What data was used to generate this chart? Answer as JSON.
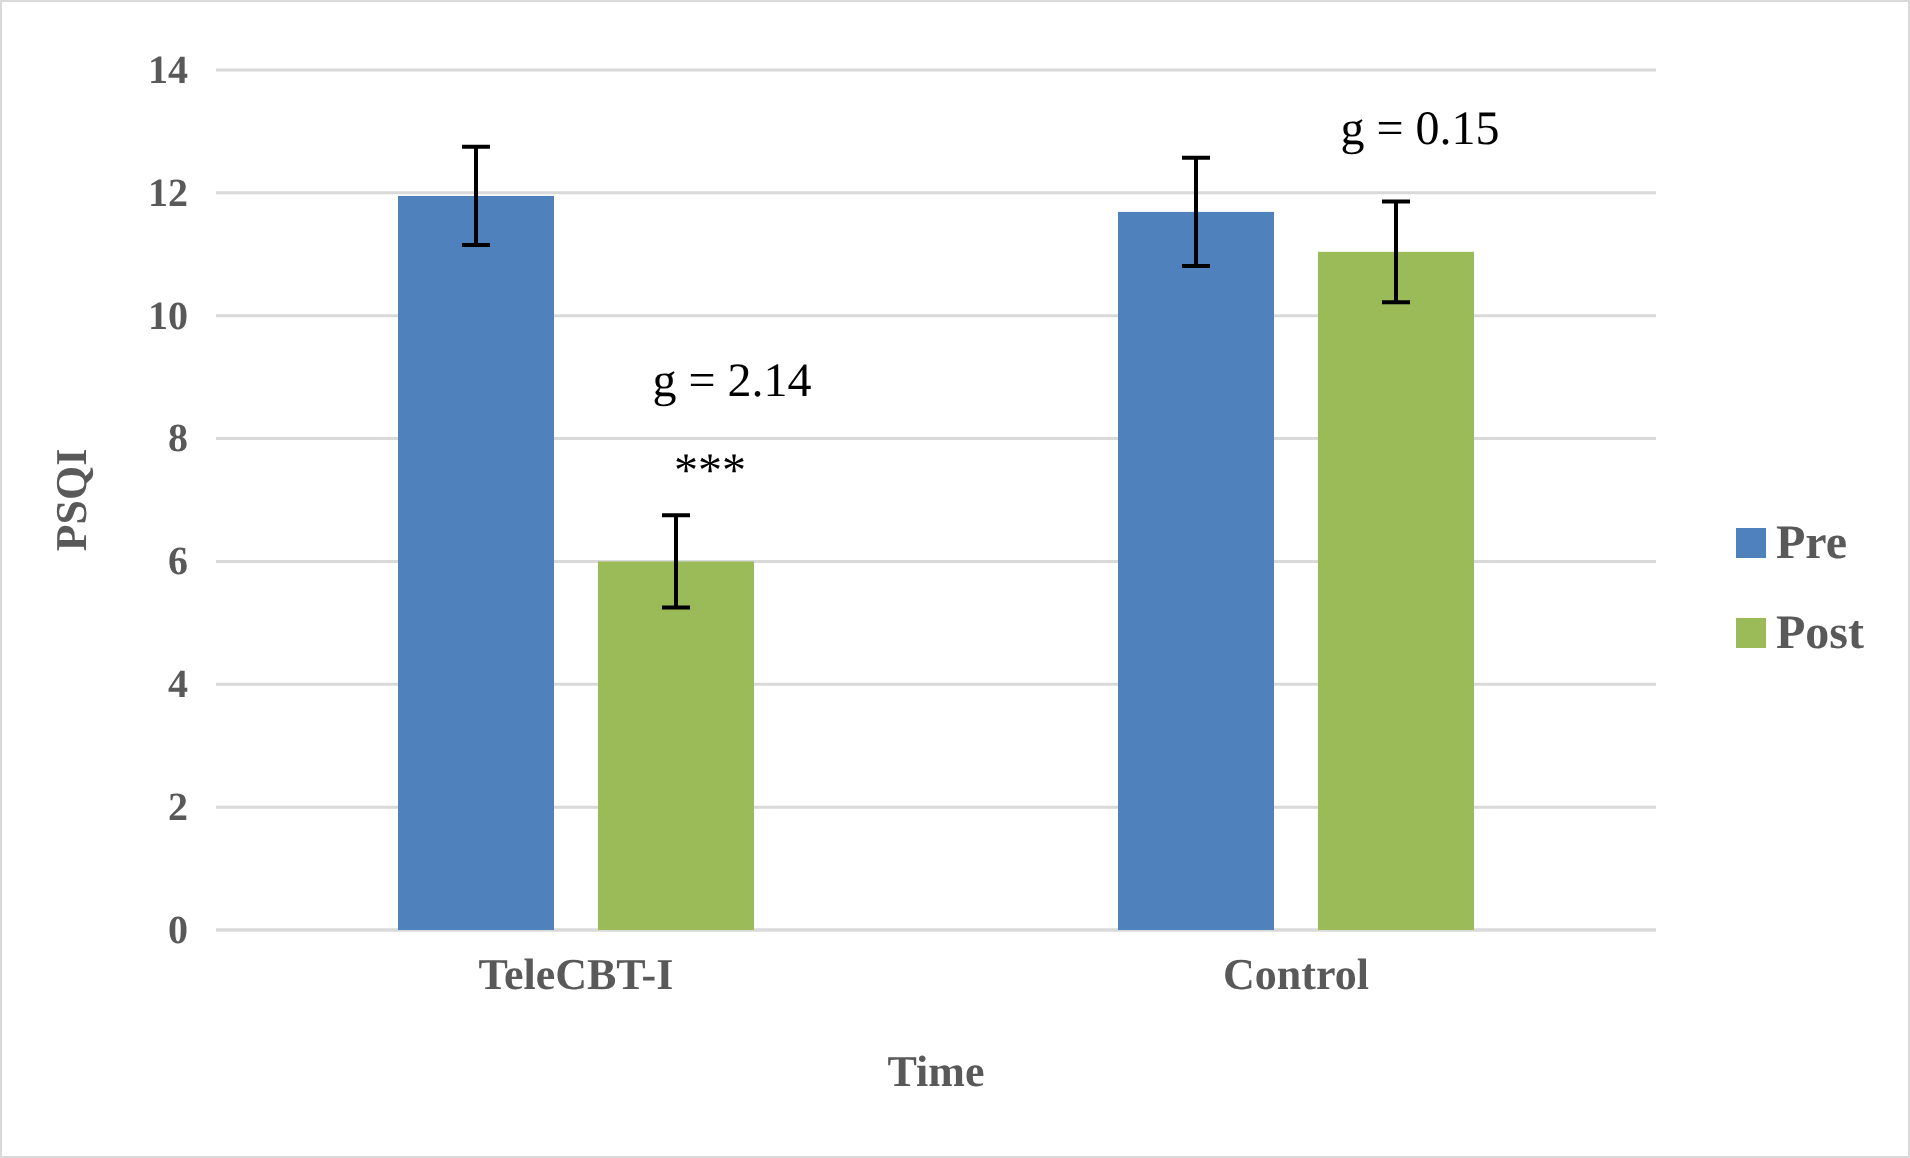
{
  "chart_data": {
    "type": "bar",
    "xlabel": "Time",
    "ylabel": "PSQI",
    "categories": [
      "TeleCBT-I",
      "Control"
    ],
    "series": [
      {
        "name": "Pre",
        "color": "#4f81bd",
        "values": [
          11.95,
          11.69
        ],
        "errors": [
          0.8,
          0.88
        ]
      },
      {
        "name": "Post",
        "color": "#9bbb59",
        "values": [
          6.0,
          11.04
        ],
        "errors": [
          0.75,
          0.82
        ]
      }
    ],
    "ylim": [
      0,
      14
    ],
    "yticks": [
      0,
      2,
      4,
      6,
      8,
      10,
      12,
      14
    ],
    "grid": "y",
    "legend": "right",
    "annotations": [
      "g = 2.14",
      "***",
      "g = 0.15"
    ]
  }
}
